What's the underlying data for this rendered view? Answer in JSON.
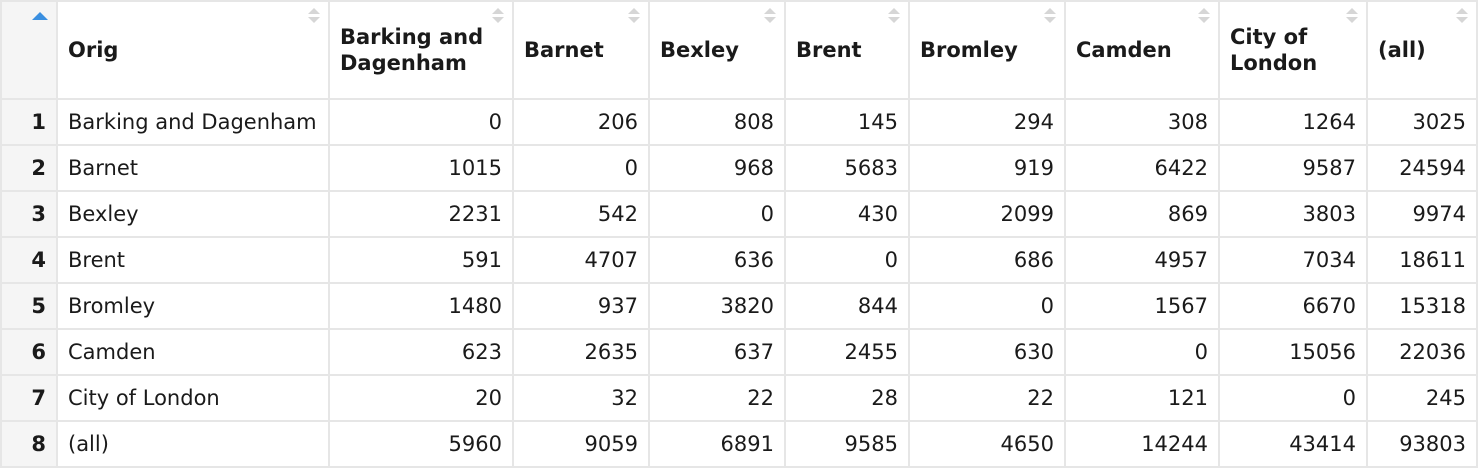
{
  "table": {
    "columns": [
      "Orig",
      "Barking and Dagenham",
      "Barnet",
      "Bexley",
      "Brent",
      "Bromley",
      "Camden",
      "City of London",
      "(all)"
    ],
    "rows": [
      {
        "idx": "1",
        "orig": "Barking and Dagenham",
        "values": [
          "0",
          "206",
          "808",
          "145",
          "294",
          "308",
          "1264",
          "3025"
        ]
      },
      {
        "idx": "2",
        "orig": "Barnet",
        "values": [
          "1015",
          "0",
          "968",
          "5683",
          "919",
          "6422",
          "9587",
          "24594"
        ]
      },
      {
        "idx": "3",
        "orig": "Bexley",
        "values": [
          "2231",
          "542",
          "0",
          "430",
          "2099",
          "869",
          "3803",
          "9974"
        ]
      },
      {
        "idx": "4",
        "orig": "Brent",
        "values": [
          "591",
          "4707",
          "636",
          "0",
          "686",
          "4957",
          "7034",
          "18611"
        ]
      },
      {
        "idx": "5",
        "orig": "Bromley",
        "values": [
          "1480",
          "937",
          "3820",
          "844",
          "0",
          "1567",
          "6670",
          "15318"
        ]
      },
      {
        "idx": "6",
        "orig": "Camden",
        "values": [
          "623",
          "2635",
          "637",
          "2455",
          "630",
          "0",
          "15056",
          "22036"
        ]
      },
      {
        "idx": "7",
        "orig": "City of London",
        "values": [
          "20",
          "32",
          "22",
          "28",
          "22",
          "121",
          "0",
          "245"
        ]
      },
      {
        "idx": "8",
        "orig": "(all)",
        "values": [
          "5960",
          "9059",
          "6891",
          "9585",
          "4650",
          "14244",
          "43414",
          "93803"
        ]
      }
    ],
    "sort_accent_color": "#3a8fe0"
  }
}
